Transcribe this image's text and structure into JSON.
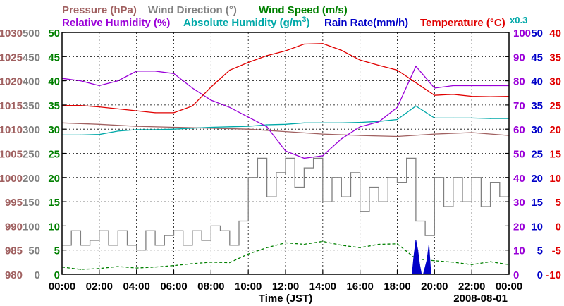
{
  "chart_data": {
    "type": "line",
    "date_label": "2008-08-01",
    "xlabel": "Time (JST)",
    "x_ticks": [
      "00:00",
      "02:00",
      "04:00",
      "06:00",
      "08:00",
      "10:00",
      "12:00",
      "14:00",
      "16:00",
      "18:00",
      "20:00",
      "22:00",
      "00:00"
    ],
    "x_range_hours": [
      0,
      24
    ],
    "legend": {
      "pressure": {
        "text": "Pressure (hPa)",
        "color": "#a06060"
      },
      "wind_dir": {
        "text": "Wind Direction (°)",
        "color": "#808080"
      },
      "wind_speed": {
        "text": "Wind Speed (m/s)",
        "color": "#008000"
      },
      "rh": {
        "text": "Relative Humidity (%)",
        "color": "#9a00d8"
      },
      "ah_prefix": "Absolute Humidity (g/m",
      "ah_sup": "3",
      "ah_suffix": ")",
      "ah_color": "#00a8a8",
      "rain": {
        "text": "Rain Rate(mm/h)",
        "color": "#0000c8"
      },
      "temp": {
        "text": "Temperature (°C)",
        "color": "#e00000"
      },
      "ah_scale_note": "x0.3"
    },
    "axes": {
      "pressure": {
        "ticks": [
          "1030",
          "1025",
          "1020",
          "1015",
          "1010",
          "1005",
          "1000",
          "995",
          "990",
          "985",
          "980"
        ],
        "range": [
          980,
          1030
        ]
      },
      "wind_dir": {
        "ticks": [
          "500",
          "450",
          "400",
          "350",
          "300",
          "250",
          "200",
          "150",
          "100",
          "50",
          "0"
        ],
        "range": [
          0,
          500
        ]
      },
      "wind_speed": {
        "ticks": [
          "50",
          "45",
          "40",
          "35",
          "30",
          "25",
          "20",
          "15",
          "10",
          "5",
          "0"
        ],
        "range": [
          0,
          50
        ]
      },
      "rh": {
        "ticks": [
          "100",
          "90",
          "80",
          "70",
          "60",
          "50",
          "40",
          "30",
          "20",
          "10",
          "0"
        ],
        "range": [
          0,
          100
        ]
      },
      "rain": {
        "ticks": [
          "50",
          "45",
          "40",
          "35",
          "30",
          "25",
          "20",
          "15",
          "10",
          "5",
          "0"
        ],
        "range": [
          0,
          50
        ]
      },
      "temp": {
        "ticks": [
          "40",
          "35",
          "30",
          "25",
          "20",
          "15",
          "10",
          "5",
          "0",
          "-5",
          "-10"
        ],
        "range": [
          -10,
          40
        ]
      }
    },
    "series": [
      {
        "name": "Temperature",
        "unit": "°C",
        "x": [
          0,
          1,
          2,
          3,
          4,
          5,
          6,
          7,
          8,
          9,
          10,
          11,
          12,
          13,
          14,
          15,
          16,
          17,
          18,
          19,
          20,
          21,
          22,
          23,
          24
        ],
        "values": [
          24.9,
          24.9,
          24.6,
          24.2,
          23.8,
          23.4,
          23.4,
          24.8,
          28.7,
          32.2,
          33.8,
          35.2,
          36.2,
          37.6,
          37.7,
          36.3,
          34.3,
          33.2,
          32.2,
          29.6,
          27.0,
          27.2,
          26.8,
          26.7,
          26.8
        ]
      },
      {
        "name": "Relative Humidity",
        "unit": "%",
        "x": [
          0,
          1,
          2,
          3,
          4,
          5,
          6,
          7,
          8,
          9,
          10,
          11,
          12,
          13,
          14,
          15,
          16,
          17,
          18,
          19,
          20,
          21,
          22,
          23,
          24
        ],
        "values": [
          81,
          80,
          78,
          80,
          84,
          84,
          83,
          77,
          72,
          69,
          65,
          61,
          51,
          48,
          49,
          56,
          61,
          63,
          69,
          86,
          77,
          78,
          78,
          78,
          78
        ]
      },
      {
        "name": "Absolute Humidity (x0.3)",
        "unit": "g/m3",
        "x": [
          0,
          1,
          2,
          3,
          4,
          5,
          6,
          7,
          8,
          9,
          10,
          11,
          12,
          13,
          14,
          15,
          16,
          17,
          18,
          19,
          20,
          21,
          22,
          23,
          24
        ],
        "values": [
          28.8,
          28.8,
          28.9,
          29.6,
          29.9,
          29.9,
          30.0,
          30.2,
          30.4,
          30.5,
          30.6,
          30.9,
          31.0,
          31.3,
          31.3,
          31.3,
          31.4,
          31.6,
          32.0,
          34.8,
          32.3,
          32.3,
          32.3,
          32.2,
          32.2
        ]
      },
      {
        "name": "Pressure",
        "unit": "hPa",
        "x": [
          0,
          2,
          4,
          6,
          8,
          10,
          12,
          14,
          16,
          18,
          20,
          22,
          24
        ],
        "values": [
          1011.3,
          1011.0,
          1010.6,
          1010.4,
          1010.2,
          1010.0,
          1009.5,
          1009.0,
          1008.7,
          1008.5,
          1009.0,
          1009.3,
          1008.7
        ]
      },
      {
        "name": "Wind Direction",
        "unit": "°",
        "x": [
          0,
          0.5,
          1,
          1.5,
          2,
          2.5,
          3,
          3.5,
          4,
          4.5,
          5,
          5.5,
          6,
          6.5,
          7,
          7.5,
          8,
          8.5,
          9,
          9.5,
          10,
          10.5,
          11,
          11.5,
          12,
          12.5,
          13,
          13.5,
          14,
          14.5,
          15,
          15.5,
          16,
          16.5,
          17,
          17.5,
          18,
          18.5,
          19,
          19.5,
          20,
          20.5,
          21,
          21.5,
          22,
          22.5,
          23,
          23.5,
          24
        ],
        "values": [
          60,
          90,
          60,
          70,
          90,
          60,
          90,
          60,
          50,
          90,
          60,
          80,
          90,
          60,
          90,
          70,
          100,
          90,
          60,
          110,
          200,
          240,
          160,
          210,
          240,
          180,
          220,
          240,
          150,
          200,
          160,
          210,
          130,
          180,
          150,
          200,
          190,
          240,
          110,
          80,
          200,
          140,
          200,
          150,
          200,
          140,
          190,
          160,
          200
        ]
      },
      {
        "name": "Wind Speed",
        "unit": "m/s",
        "x": [
          0,
          1,
          2,
          3,
          4,
          5,
          6,
          7,
          8,
          9,
          10,
          11,
          12,
          13,
          14,
          15,
          16,
          17,
          18,
          19,
          20,
          21,
          22,
          23,
          24
        ],
        "values": [
          1.5,
          1.0,
          1.2,
          1.6,
          1.3,
          1.5,
          1.8,
          2.2,
          2.5,
          2.4,
          4.2,
          5.5,
          6.5,
          6.2,
          6.8,
          6.0,
          5.5,
          6.2,
          6.3,
          3.2,
          2.8,
          2.5,
          2.0,
          2.6,
          2.0
        ]
      },
      {
        "name": "Rain Rate",
        "unit": "mm/h",
        "x": [
          18.8,
          18.9,
          19.0,
          19.1,
          19.2,
          19.3,
          19.4,
          19.6,
          19.7,
          19.8
        ],
        "values": [
          0,
          4,
          7,
          5,
          2,
          0,
          0,
          3,
          6,
          0
        ]
      }
    ]
  }
}
